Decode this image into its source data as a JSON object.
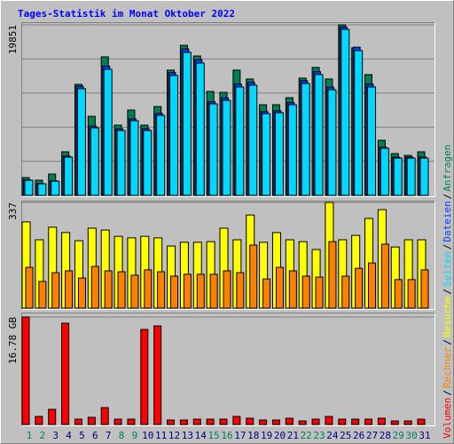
{
  "chart_data": [
    {
      "type": "bar",
      "title": "Tages-Statistik im Monat Oktober 2022",
      "categories": [
        "1",
        "2",
        "3",
        "4",
        "5",
        "6",
        "7",
        "8",
        "9",
        "10",
        "11",
        "12",
        "13",
        "14",
        "15",
        "16",
        "17",
        "18",
        "19",
        "20",
        "21",
        "22",
        "23",
        "24",
        "25",
        "26",
        "27",
        "28",
        "29",
        "30",
        "31"
      ],
      "category_colors": [
        "#008060",
        "#008060",
        "#000080",
        "#000080",
        "#000080",
        "#000080",
        "#000080",
        "#008060",
        "#008060",
        "#000080",
        "#000080",
        "#000080",
        "#000080",
        "#000080",
        "#008060",
        "#008060",
        "#000080",
        "#000080",
        "#000080",
        "#000080",
        "#000080",
        "#008060",
        "#008060",
        "#000080",
        "#000080",
        "#000080",
        "#000080",
        "#000080",
        "#008060",
        "#008060",
        "#000080"
      ],
      "ylim": [
        0,
        19851
      ],
      "yticks": [
        19851
      ],
      "grid": true,
      "series": [
        {
          "name": "Anfragen",
          "color": "#008050",
          "values": [
            2070,
            1760,
            2480,
            5070,
            12920,
            9200,
            16130,
            8170,
            9930,
            8170,
            10340,
            14580,
            17470,
            16230,
            12100,
            11990,
            14580,
            13550,
            10550,
            10550,
            11370,
            13650,
            14890,
            13550,
            19851,
            17160,
            14060,
            6410,
            4860,
            4650,
            5070
          ]
        },
        {
          "name": "Dateien",
          "color": "#0040ff",
          "values": [
            1800,
            1380,
            1700,
            4580,
            12700,
            8050,
            15050,
            7750,
            8900,
            7750,
            9550,
            14300,
            17050,
            15800,
            10900,
            11350,
            12950,
            13150,
            9750,
            9850,
            10800,
            13350,
            14400,
            12600,
            19600,
            17250,
            12950,
            5620,
            4450,
            4450,
            4450
          ]
        },
        {
          "name": "Seiten",
          "color": "#00d8ff",
          "values": [
            1760,
            1340,
            1650,
            4450,
            12410,
            7860,
            14680,
            7550,
            8690,
            7550,
            9310,
            13960,
            16650,
            15410,
            10650,
            11060,
            12620,
            12830,
            9510,
            9620,
            10550,
            13030,
            14060,
            12300,
            19330,
            16850,
            12620,
            5480,
            4340,
            4340,
            4340
          ]
        }
      ]
    },
    {
      "type": "bar",
      "ylim": [
        0,
        337
      ],
      "yticks": [
        337
      ],
      "grid": false,
      "series": [
        {
          "name": "Besuche",
          "color": "#ffff00",
          "values": [
            275,
            218,
            258,
            241,
            215,
            255,
            249,
            229,
            224,
            229,
            224,
            198,
            210,
            210,
            212,
            255,
            218,
            297,
            210,
            241,
            218,
            212,
            187,
            337,
            218,
            232,
            286,
            314,
            195,
            218,
            218
          ]
        },
        {
          "name": "Rechner",
          "color": "#ff8000",
          "values": [
            130,
            85,
            113,
            119,
            96,
            133,
            119,
            116,
            105,
            122,
            116,
            102,
            108,
            108,
            108,
            119,
            113,
            201,
            93,
            130,
            119,
            102,
            99,
            212,
            102,
            127,
            144,
            204,
            91,
            91,
            122
          ]
        }
      ]
    },
    {
      "type": "bar",
      "ylim": [
        0,
        16.78
      ],
      "yticks": [
        {
          "value": 16.78,
          "label": "16.78 GB"
        }
      ],
      "grid": false,
      "series": [
        {
          "name": "Volumen",
          "color": "#ff0000",
          "values": [
            16.78,
            1.25,
            2.36,
            15.81,
            0.83,
            1.11,
            2.63,
            0.83,
            0.83,
            14.84,
            15.39,
            0.69,
            0.69,
            0.83,
            0.83,
            0.83,
            1.25,
            0.97,
            0.69,
            0.69,
            0.97,
            0.55,
            0.83,
            1.25,
            0.83,
            0.83,
            0.83,
            0.97,
            0.55,
            0.55,
            0.83
          ]
        }
      ]
    }
  ],
  "legend_separator": "/"
}
